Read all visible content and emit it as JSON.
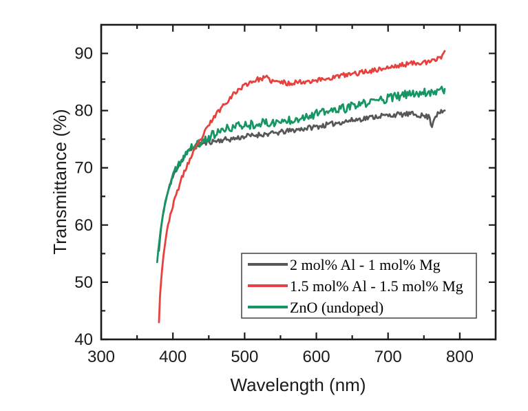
{
  "figure": {
    "background": "#ffffff",
    "axis_color": "#1a1a1a",
    "legend_border_color": "#4d4d4d"
  },
  "chart_data": {
    "type": "line",
    "title": "",
    "xlabel": "Wavelength (nm)",
    "ylabel": "Transmittance (%)",
    "xlim": [
      300,
      850
    ],
    "ylim": [
      40,
      95
    ],
    "x_major_ticks": [
      300,
      400,
      500,
      600,
      700,
      800
    ],
    "x_minor_ticks": [
      350,
      450,
      550,
      650,
      750
    ],
    "y_major_ticks": [
      40,
      50,
      60,
      70,
      80,
      90
    ],
    "y_minor_ticks": [
      45,
      55,
      65,
      75,
      85
    ],
    "grid": false,
    "legend_position": "inside-bottom-right",
    "series": [
      {
        "name": "2 mol% Al - 1 mol% Mg",
        "color": "#575757",
        "noise": 0.45,
        "seed": 11,
        "points": [
          [
            380.5,
            55.5
          ],
          [
            383,
            59
          ],
          [
            386,
            61.8
          ],
          [
            390,
            64.3
          ],
          [
            394,
            66.2
          ],
          [
            398,
            67.8
          ],
          [
            402,
            69
          ],
          [
            406,
            70
          ],
          [
            410,
            70.9
          ],
          [
            414,
            71.6
          ],
          [
            418,
            72.3
          ],
          [
            422,
            72.9
          ],
          [
            426,
            73.3
          ],
          [
            430,
            73.7
          ],
          [
            435,
            74
          ],
          [
            440,
            74.2
          ],
          [
            445,
            74.3
          ],
          [
            450,
            74.5
          ],
          [
            460,
            74.7
          ],
          [
            470,
            74.9
          ],
          [
            480,
            75
          ],
          [
            490,
            75.2
          ],
          [
            500,
            75.5
          ],
          [
            510,
            75.6
          ],
          [
            520,
            75.8
          ],
          [
            530,
            75.9
          ],
          [
            540,
            76
          ],
          [
            550,
            76.2
          ],
          [
            560,
            76.4
          ],
          [
            570,
            76.6
          ],
          [
            580,
            76.8
          ],
          [
            590,
            77
          ],
          [
            600,
            77.2
          ],
          [
            610,
            77.4
          ],
          [
            620,
            77.6
          ],
          [
            630,
            77.9
          ],
          [
            640,
            78.1
          ],
          [
            650,
            78.3
          ],
          [
            660,
            78.5
          ],
          [
            670,
            78.7
          ],
          [
            680,
            78.9
          ],
          [
            690,
            79.1
          ],
          [
            700,
            79.1
          ],
          [
            710,
            79.3
          ],
          [
            720,
            79.3
          ],
          [
            730,
            79.4
          ],
          [
            740,
            79.3
          ],
          [
            748,
            79.1
          ],
          [
            755,
            78.9
          ],
          [
            758,
            79
          ],
          [
            761,
            77
          ],
          [
            764,
            78.8
          ],
          [
            768,
            79.3
          ],
          [
            773,
            79.6
          ],
          [
            779,
            80
          ]
        ]
      },
      {
        "name": "1.5 mol% Al - 1.5 mol% Mg",
        "color": "#e8403c",
        "noise": 0.42,
        "seed": 23,
        "points": [
          [
            380.5,
            43
          ],
          [
            382,
            47.5
          ],
          [
            384,
            51
          ],
          [
            386,
            53.8
          ],
          [
            388,
            55.8
          ],
          [
            390,
            57.6
          ],
          [
            393,
            59.8
          ],
          [
            396,
            61.6
          ],
          [
            400,
            63.4
          ],
          [
            404,
            65.1
          ],
          [
            408,
            66.6
          ],
          [
            412,
            68
          ],
          [
            416,
            69.3
          ],
          [
            420,
            70.5
          ],
          [
            424,
            71.5
          ],
          [
            428,
            72.5
          ],
          [
            432,
            73.4
          ],
          [
            436,
            74.3
          ],
          [
            440,
            75.2
          ],
          [
            445,
            76.3
          ],
          [
            450,
            77.4
          ],
          [
            455,
            78.4
          ],
          [
            460,
            79.3
          ],
          [
            465,
            80.1
          ],
          [
            470,
            80.9
          ],
          [
            475,
            81.6
          ],
          [
            480,
            82.3
          ],
          [
            485,
            82.9
          ],
          [
            490,
            83.5
          ],
          [
            495,
            84
          ],
          [
            500,
            84.4
          ],
          [
            505,
            84.8
          ],
          [
            510,
            85.1
          ],
          [
            515,
            85.3
          ],
          [
            520,
            85.5
          ],
          [
            525,
            85.6
          ],
          [
            530,
            85.8
          ],
          [
            535,
            85.3
          ],
          [
            540,
            85.1
          ],
          [
            545,
            85
          ],
          [
            550,
            85
          ],
          [
            555,
            84.9
          ],
          [
            560,
            84.7
          ],
          [
            565,
            84.8
          ],
          [
            570,
            85
          ],
          [
            575,
            85
          ],
          [
            580,
            85
          ],
          [
            585,
            85.1
          ],
          [
            590,
            85.2
          ],
          [
            600,
            85.3
          ],
          [
            610,
            85.5
          ],
          [
            620,
            85.7
          ],
          [
            630,
            86
          ],
          [
            640,
            86.2
          ],
          [
            650,
            86.4
          ],
          [
            660,
            86.6
          ],
          [
            670,
            86.9
          ],
          [
            680,
            87
          ],
          [
            690,
            87.3
          ],
          [
            700,
            87.5
          ],
          [
            710,
            87.7
          ],
          [
            720,
            88
          ],
          [
            730,
            88.2
          ],
          [
            740,
            88.4
          ],
          [
            748,
            88.5
          ],
          [
            755,
            88.3
          ],
          [
            760,
            88.6
          ],
          [
            765,
            88.8
          ],
          [
            770,
            89.2
          ],
          [
            774,
            89.4
          ],
          [
            777,
            90
          ],
          [
            779,
            90.4
          ]
        ]
      },
      {
        "name": "ZnO (undoped)",
        "color": "#169662",
        "noise": 0.78,
        "seed": 37,
        "points": [
          [
            378,
            53.5
          ],
          [
            380,
            56
          ],
          [
            382,
            58.3
          ],
          [
            385,
            61
          ],
          [
            388,
            63
          ],
          [
            391,
            64.8
          ],
          [
            394,
            66.2
          ],
          [
            397,
            67.4
          ],
          [
            400,
            68.4
          ],
          [
            404,
            69.6
          ],
          [
            408,
            70.6
          ],
          [
            412,
            71.4
          ],
          [
            416,
            72.1
          ],
          [
            420,
            72.7
          ],
          [
            425,
            73.3
          ],
          [
            430,
            73.8
          ],
          [
            435,
            74.1
          ],
          [
            440,
            74.5
          ],
          [
            445,
            74.9
          ],
          [
            450,
            75.3
          ],
          [
            455,
            75.7
          ],
          [
            460,
            76
          ],
          [
            470,
            76.5
          ],
          [
            480,
            77
          ],
          [
            490,
            77.3
          ],
          [
            500,
            77.5
          ],
          [
            510,
            77.6
          ],
          [
            520,
            77.8
          ],
          [
            530,
            77.8
          ],
          [
            540,
            77.9
          ],
          [
            550,
            78
          ],
          [
            560,
            78.3
          ],
          [
            570,
            78.6
          ],
          [
            580,
            78.9
          ],
          [
            590,
            79.2
          ],
          [
            600,
            79.4
          ],
          [
            610,
            79.7
          ],
          [
            620,
            79.9
          ],
          [
            630,
            80.2
          ],
          [
            640,
            80.4
          ],
          [
            650,
            80.7
          ],
          [
            660,
            81
          ],
          [
            670,
            81.3
          ],
          [
            680,
            81.6
          ],
          [
            690,
            82
          ],
          [
            700,
            82.1
          ],
          [
            710,
            82.4
          ],
          [
            720,
            82.6
          ],
          [
            730,
            82.9
          ],
          [
            740,
            83.1
          ],
          [
            750,
            83.2
          ],
          [
            760,
            83.3
          ],
          [
            770,
            83.5
          ],
          [
            779,
            83.8
          ]
        ]
      }
    ]
  }
}
